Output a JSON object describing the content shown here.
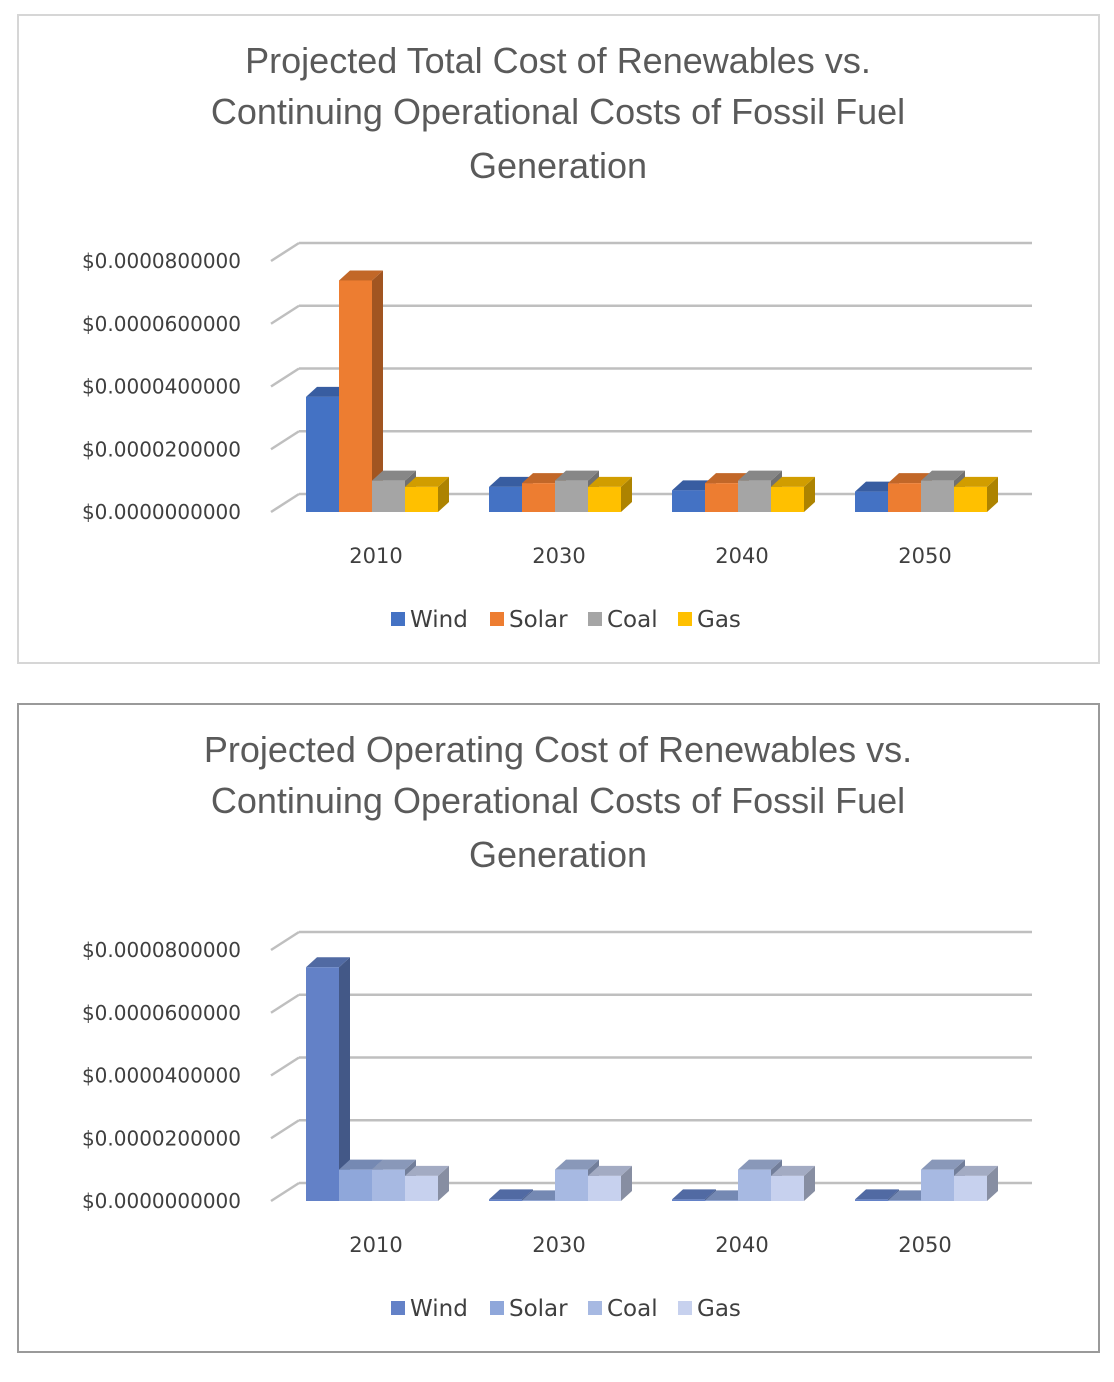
{
  "chart_data": [
    {
      "type": "bar",
      "title": "Projected Total Cost of Renewables vs. Continuing Operational Costs of Fossil Fuel Generation",
      "title_lines": [
        "Projected Total Cost of Renewables vs.",
        "Continuing Operational Costs of Fossil Fuel",
        "Generation"
      ],
      "categories": [
        "2010",
        "2030",
        "2040",
        "2050"
      ],
      "y_tick_labels": [
        "$0.0000000000",
        "$0.0000200000",
        "$0.0000400000",
        "$0.0000600000",
        "$0.0000800000"
      ],
      "ylim": [
        0,
        8e-05
      ],
      "grid": true,
      "three_d": true,
      "legend_position": "bottom",
      "series": [
        {
          "name": "Wind",
          "color": "#4472c4",
          "values": [
            3.67e-05,
            8e-06,
            6.9e-06,
            6.5e-06
          ]
        },
        {
          "name": "Solar",
          "color": "#ed7d31",
          "values": [
            7.38e-05,
            9.2e-06,
            9.2e-06,
            9.2e-06
          ]
        },
        {
          "name": "Coal",
          "color": "#a5a5a5",
          "values": [
            1e-05,
            1e-05,
            1e-05,
            1e-05
          ]
        },
        {
          "name": "Gas",
          "color": "#ffc000",
          "values": [
            8e-06,
            8e-06,
            8e-06,
            8e-06
          ]
        }
      ]
    },
    {
      "type": "bar",
      "title": "Projected Operating Cost of Renewables vs. Continuing Operational Costs of Fossil Fuel Generation",
      "title_lines": [
        "Projected Operating Cost of Renewables vs.",
        "Continuing Operational Costs of Fossil Fuel",
        "Generation"
      ],
      "categories": [
        "2010",
        "2030",
        "2040",
        "2050"
      ],
      "y_tick_labels": [
        "$0.0000000000",
        "$0.0000200000",
        "$0.0000400000",
        "$0.0000600000",
        "$0.0000800000"
      ],
      "ylim": [
        0,
        8e-05
      ],
      "grid": true,
      "three_d": true,
      "legend_position": "bottom",
      "series": [
        {
          "name": "Wind",
          "color": "#6381c7",
          "values": [
            7.45e-05,
            5e-07,
            5e-07,
            5e-07
          ]
        },
        {
          "name": "Solar",
          "color": "#8fa7da",
          "values": [
            1e-05,
            2e-07,
            2e-07,
            2e-07
          ]
        },
        {
          "name": "Coal",
          "color": "#a7b9e2",
          "values": [
            1e-05,
            1e-05,
            1e-05,
            1e-05
          ]
        },
        {
          "name": "Gas",
          "color": "#c7d1ee",
          "values": [
            8e-06,
            8e-06,
            8e-06,
            8e-06
          ]
        }
      ]
    }
  ]
}
